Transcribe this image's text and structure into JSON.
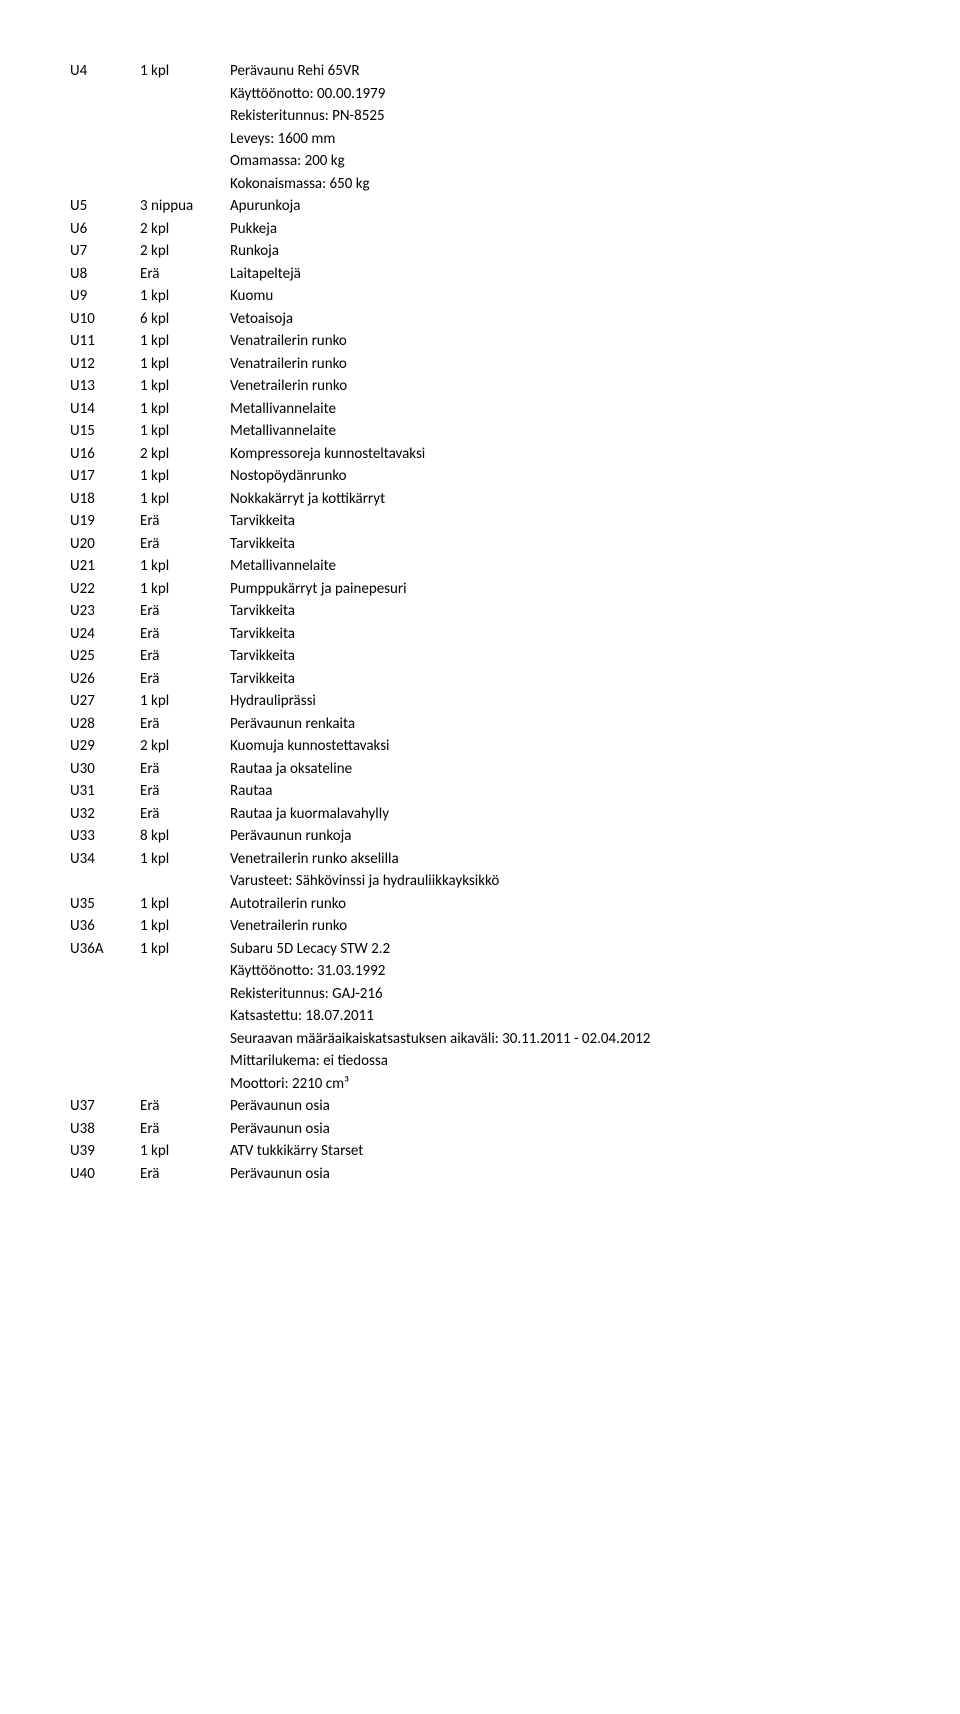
{
  "rows": [
    {
      "id": "U4",
      "qty": "1 kpl",
      "lines": [
        "Perävaunu Rehi 65VR",
        "Käyttöönotto: 00.00.1979",
        "Rekisteritunnus: PN-8525",
        "Leveys: 1600 mm",
        "Omamassa: 200 kg",
        "Kokonaismassa: 650 kg"
      ]
    },
    {
      "id": "U5",
      "qty": "3 nippua",
      "lines": [
        "Apurunkoja"
      ]
    },
    {
      "id": "U6",
      "qty": "2 kpl",
      "lines": [
        "Pukkeja"
      ]
    },
    {
      "id": "U7",
      "qty": "2 kpl",
      "lines": [
        "Runkoja"
      ]
    },
    {
      "id": "U8",
      "qty": "Erä",
      "lines": [
        "Laitapeltejä"
      ]
    },
    {
      "id": "U9",
      "qty": "1 kpl",
      "lines": [
        "Kuomu"
      ]
    },
    {
      "id": "U10",
      "qty": "6 kpl",
      "lines": [
        "Vetoaisoja"
      ]
    },
    {
      "id": "U11",
      "qty": "1 kpl",
      "lines": [
        "Venatrailerin runko"
      ]
    },
    {
      "id": "U12",
      "qty": "1 kpl",
      "lines": [
        "Venatrailerin runko"
      ]
    },
    {
      "id": "U13",
      "qty": "1 kpl",
      "lines": [
        "Venetrailerin runko"
      ]
    },
    {
      "id": "U14",
      "qty": "1 kpl",
      "lines": [
        "Metallivannelaite"
      ]
    },
    {
      "id": "U15",
      "qty": "1 kpl",
      "lines": [
        "Metallivannelaite"
      ]
    },
    {
      "id": "U16",
      "qty": "2 kpl",
      "lines": [
        "Kompressoreja kunnosteltavaksi"
      ]
    },
    {
      "id": "U17",
      "qty": "1 kpl",
      "lines": [
        "Nostopöydänrunko"
      ]
    },
    {
      "id": "U18",
      "qty": "1 kpl",
      "lines": [
        "Nokkakärryt ja kottikärryt"
      ]
    },
    {
      "id": "U19",
      "qty": "Erä",
      "lines": [
        "Tarvikkeita"
      ]
    },
    {
      "id": "U20",
      "qty": "Erä",
      "lines": [
        "Tarvikkeita"
      ]
    },
    {
      "id": "U21",
      "qty": "1 kpl",
      "lines": [
        "Metallivannelaite"
      ]
    },
    {
      "id": "U22",
      "qty": "1 kpl",
      "lines": [
        "Pumppukärryt ja painepesuri"
      ]
    },
    {
      "id": "U23",
      "qty": "Erä",
      "lines": [
        "Tarvikkeita"
      ]
    },
    {
      "id": "U24",
      "qty": "Erä",
      "lines": [
        "Tarvikkeita"
      ]
    },
    {
      "id": "U25",
      "qty": "Erä",
      "lines": [
        "Tarvikkeita"
      ]
    },
    {
      "id": "U26",
      "qty": "Erä",
      "lines": [
        "Tarvikkeita"
      ]
    },
    {
      "id": "U27",
      "qty": "1 kpl",
      "lines": [
        "Hydrauliprässi"
      ]
    },
    {
      "id": "U28",
      "qty": "Erä",
      "lines": [
        "Perävaunun renkaita"
      ]
    },
    {
      "id": "U29",
      "qty": "2 kpl",
      "lines": [
        "Kuomuja kunnostettavaksi"
      ]
    },
    {
      "id": "U30",
      "qty": "Erä",
      "lines": [
        "Rautaa ja oksateline"
      ]
    },
    {
      "id": "U31",
      "qty": "Erä",
      "lines": [
        "Rautaa"
      ]
    },
    {
      "id": "U32",
      "qty": "Erä",
      "lines": [
        "Rautaa ja kuormalavahylly"
      ]
    },
    {
      "id": "U33",
      "qty": "8 kpl",
      "lines": [
        "Perävaunun runkoja"
      ]
    },
    {
      "id": "U34",
      "qty": "1 kpl",
      "lines": [
        "Venetrailerin runko akselilla",
        "Varusteet: Sähkövinssi ja hydrauliikkayksikkö"
      ]
    },
    {
      "id": "U35",
      "qty": "1 kpl",
      "lines": [
        "Autotrailerin runko"
      ]
    },
    {
      "id": "U36",
      "qty": "1 kpl",
      "lines": [
        "Venetrailerin runko"
      ]
    },
    {
      "id": "U36A",
      "qty": "1 kpl",
      "lines": [
        "Subaru 5D Lecacy STW 2.2",
        "Käyttöönotto: 31.03.1992",
        "Rekisteritunnus: GAJ-216",
        "Katsastettu: 18.07.2011",
        "Seuraavan määräaikaiskatsastuksen aikaväli: 30.11.2011 - 02.04.2012",
        "Mittarilukema: ei tiedossa",
        "Moottori: 2210 cm³"
      ]
    },
    {
      "id": "U37",
      "qty": "Erä",
      "lines": [
        "Perävaunun osia"
      ]
    },
    {
      "id": "U38",
      "qty": "Erä",
      "lines": [
        "Perävaunun osia"
      ]
    },
    {
      "id": "U39",
      "qty": "1 kpl",
      "lines": [
        "ATV tukkikärry Starset"
      ]
    },
    {
      "id": "U40",
      "qty": "Erä",
      "lines": [
        "Perävaunun osia"
      ]
    }
  ]
}
